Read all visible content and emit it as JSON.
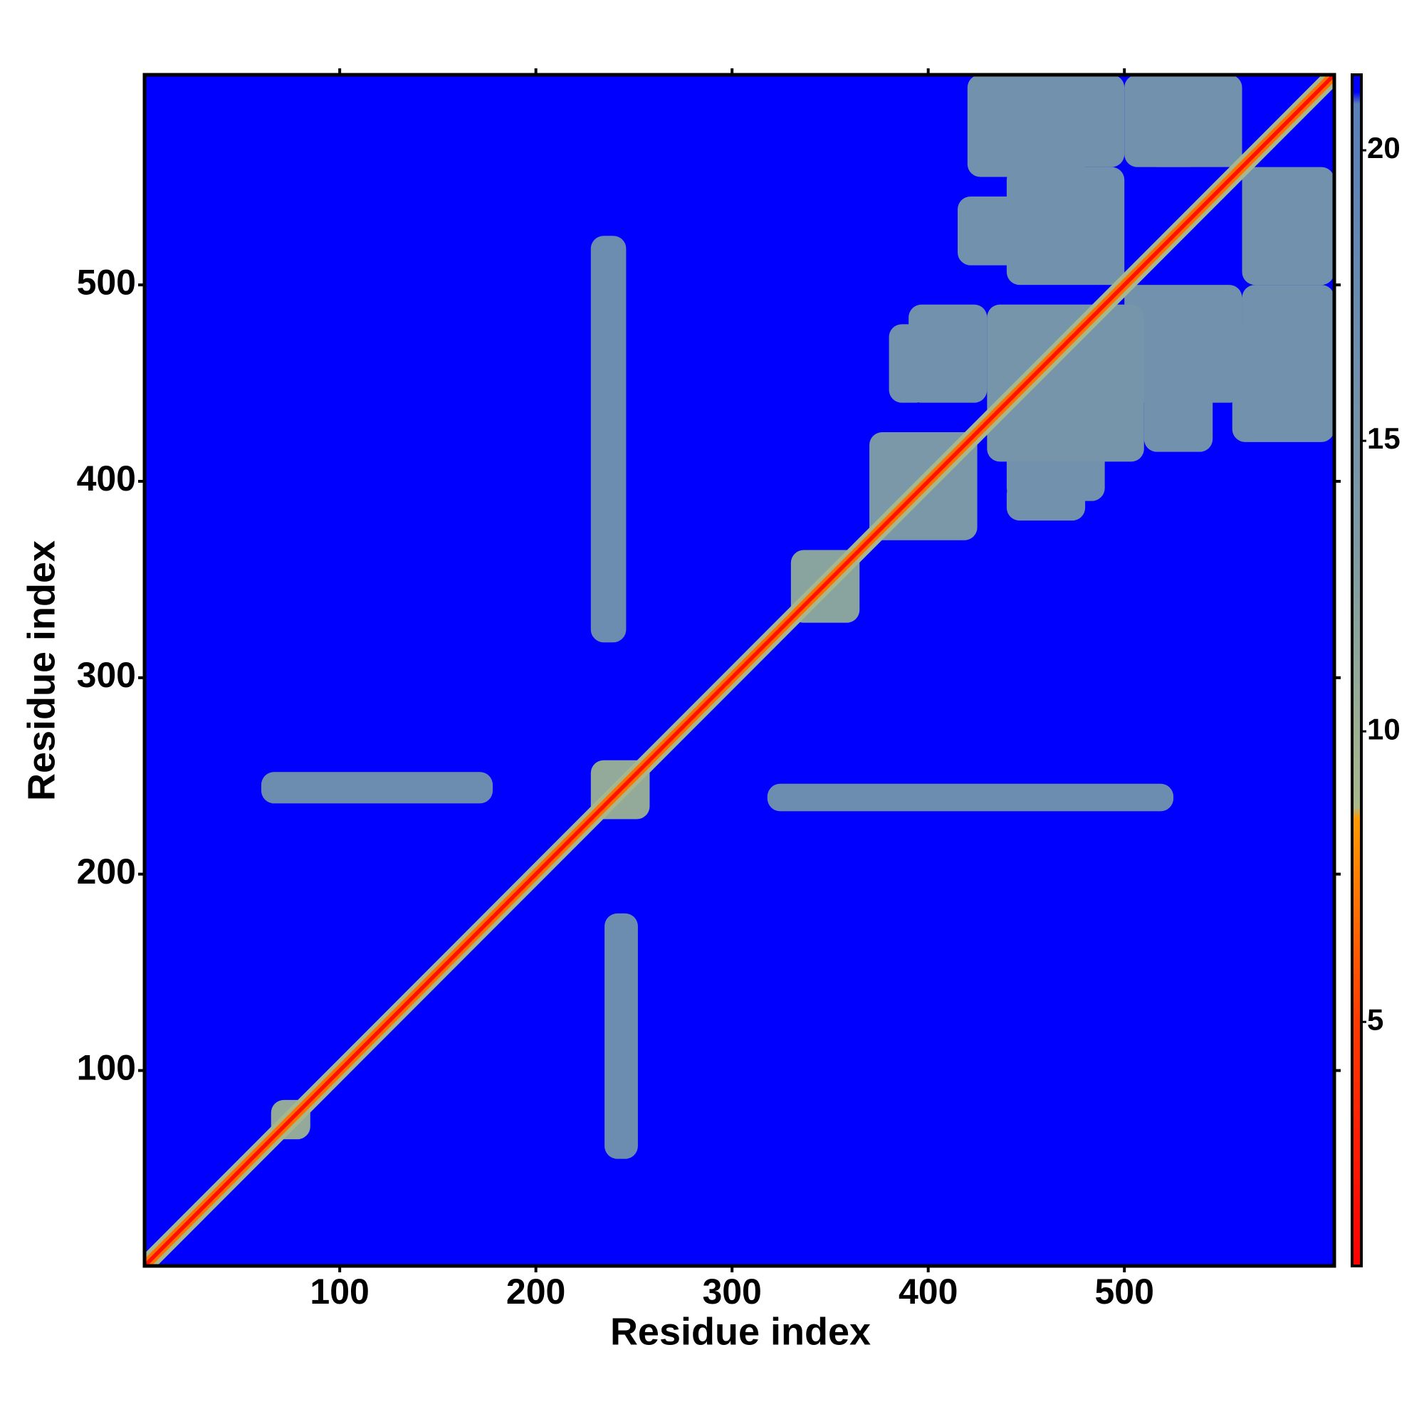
{
  "chart_data": {
    "type": "heatmap",
    "xlabel": "Residue index",
    "ylabel": "Residue index",
    "xlim": [
      0.5,
      607
    ],
    "ylim": [
      0.5,
      607
    ],
    "xticks": [
      100,
      200,
      300,
      400,
      500
    ],
    "yticks": [
      100,
      200,
      300,
      400,
      500
    ],
    "clim": [
      0.8,
      21.3
    ],
    "cticks": [
      5,
      10,
      15,
      20
    ],
    "colormap": [
      {
        "value": 0.8,
        "color": "#ff0000"
      },
      {
        "value": 5,
        "color": "#ff3a00"
      },
      {
        "value": 8.5,
        "color": "#ff9a00"
      },
      {
        "value": 8.7,
        "color": "#a9b98c"
      },
      {
        "value": 13,
        "color": "#7f9ca4"
      },
      {
        "value": 20.8,
        "color": "#5a7fba"
      },
      {
        "value": 21,
        "color": "#0000ff"
      },
      {
        "value": 21.3,
        "color": "#0000ff"
      }
    ],
    "background": 21,
    "blocks": [
      {
        "x": [
          235,
          252
        ],
        "y": [
          55,
          180
        ],
        "value": 17
      },
      {
        "x": [
          60,
          178
        ],
        "y": [
          236,
          252
        ],
        "value": 17
      },
      {
        "x": [
          228,
          246
        ],
        "y": [
          318,
          525
        ],
        "value": 17
      },
      {
        "x": [
          318,
          525
        ],
        "y": [
          232,
          246
        ],
        "value": 17
      },
      {
        "x": [
          440,
          500
        ],
        "y": [
          560,
          607
        ],
        "value": 16
      },
      {
        "x": [
          560,
          607
        ],
        "y": [
          440,
          500
        ],
        "value": 16
      },
      {
        "x": [
          510,
          540
        ],
        "y": [
          560,
          607
        ],
        "value": 16
      },
      {
        "x": [
          560,
          607
        ],
        "y": [
          510,
          540
        ],
        "value": 16
      },
      {
        "x": [
          440,
          500
        ],
        "y": [
          500,
          560
        ],
        "value": 16
      },
      {
        "x": [
          500,
          560
        ],
        "y": [
          440,
          500
        ],
        "value": 16
      },
      {
        "x": [
          390,
          430
        ],
        "y": [
          440,
          490
        ],
        "value": 16
      },
      {
        "x": [
          440,
          490
        ],
        "y": [
          390,
          430
        ],
        "value": 16
      },
      {
        "x": [
          430,
          510
        ],
        "y": [
          410,
          490
        ],
        "value": 15
      },
      {
        "x": [
          510,
          545
        ],
        "y": [
          415,
          480
        ],
        "value": 16
      },
      {
        "x": [
          415,
          480
        ],
        "y": [
          510,
          545
        ],
        "value": 16
      },
      {
        "x": [
          555,
          607
        ],
        "y": [
          420,
          480
        ],
        "value": 16
      },
      {
        "x": [
          420,
          480
        ],
        "y": [
          555,
          607
        ],
        "value": 16
      },
      {
        "x": [
          560,
          607
        ],
        "y": [
          500,
          560
        ],
        "value": 16
      },
      {
        "x": [
          500,
          560
        ],
        "y": [
          560,
          607
        ],
        "value": 16
      },
      {
        "x": [
          370,
          425
        ],
        "y": [
          370,
          425
        ],
        "value": 14
      },
      {
        "x": [
          440,
          480
        ],
        "y": [
          380,
          400
        ],
        "value": 16
      },
      {
        "x": [
          380,
          400
        ],
        "y": [
          440,
          480
        ],
        "value": 16
      },
      {
        "x": [
          330,
          365
        ],
        "y": [
          328,
          365
        ],
        "value": 12
      },
      {
        "x": [
          228,
          258
        ],
        "y": [
          228,
          258
        ],
        "value": 11
      },
      {
        "x": [
          65,
          85
        ],
        "y": [
          65,
          85
        ],
        "value": 11
      }
    ],
    "diagonal": [
      {
        "width": 9,
        "value": 9
      },
      {
        "width": 5,
        "value": 7
      },
      {
        "width": 2,
        "value": 2
      }
    ]
  }
}
